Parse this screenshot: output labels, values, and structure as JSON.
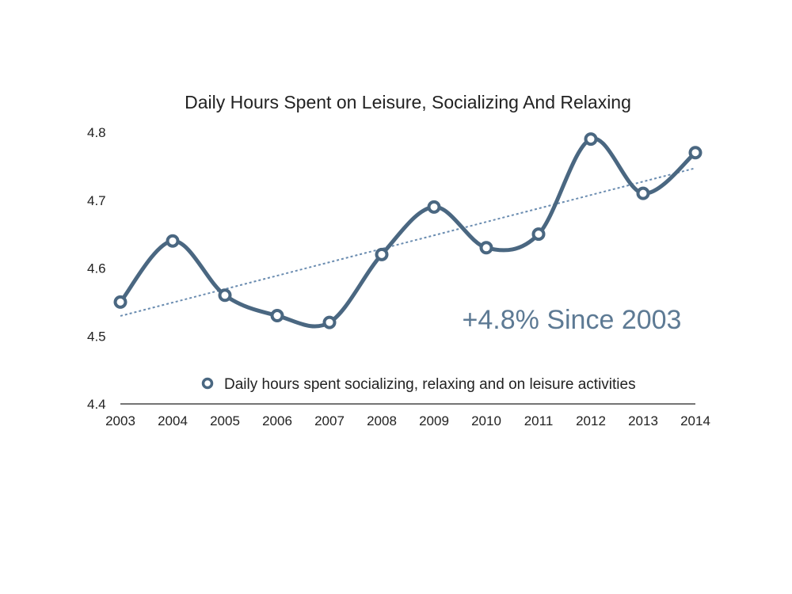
{
  "chart_data": {
    "type": "line",
    "title": "Daily Hours Spent on Leisure, Socializing And Relaxing",
    "xlabel": "",
    "ylabel": "",
    "x": [
      "2003",
      "2004",
      "2005",
      "2006",
      "2007",
      "2008",
      "2009",
      "2010",
      "2011",
      "2012",
      "2013",
      "2014"
    ],
    "series": [
      {
        "name": "Daily hours spent socializing, relaxing and on leisure activities",
        "values": [
          4.55,
          4.64,
          4.56,
          4.53,
          4.52,
          4.62,
          4.69,
          4.63,
          4.65,
          4.79,
          4.71,
          4.77
        ],
        "color": "#4a6781",
        "smooth": true,
        "markers": "hollow-circle"
      }
    ],
    "trendline": {
      "type": "linear",
      "style": "dotted",
      "color": "#6a8cb0"
    },
    "ylim": [
      4.4,
      4.8
    ],
    "yticks": [
      "4.4",
      "4.5",
      "4.6",
      "4.7",
      "4.8"
    ],
    "grid": false,
    "legend": "bottom-right inside plot",
    "annotations": [
      {
        "text": "+4.8% Since 2003",
        "color": "#5d7a94"
      }
    ]
  }
}
